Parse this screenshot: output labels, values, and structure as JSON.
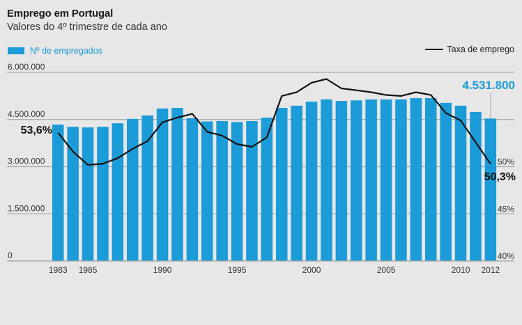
{
  "chart_data": {
    "type": "bar",
    "title": "Emprego em Portugal",
    "subtitle": "Valores do 4º trimestre de cada ano",
    "xlabel": "",
    "ylabel": "",
    "grid": true,
    "categories": [
      "1983",
      "1984",
      "1985",
      "1986",
      "1987",
      "1988",
      "1989",
      "1990",
      "1991",
      "1992",
      "1993",
      "1994",
      "1995",
      "1996",
      "1997",
      "1998",
      "1999",
      "2000",
      "2001",
      "2002",
      "2003",
      "2004",
      "2005",
      "2006",
      "2007",
      "2008",
      "2009",
      "2010",
      "2011",
      "2012"
    ],
    "x_tick_labels": [
      "1983",
      "1985",
      "1990",
      "1995",
      "2000",
      "2005",
      "2010",
      "2012"
    ],
    "series": [
      {
        "name": "Nº de empregados",
        "type": "bar",
        "axis": "left",
        "color": "#1b9bd7",
        "values": [
          4340000,
          4270000,
          4250000,
          4270000,
          4380000,
          4520000,
          4630000,
          4850000,
          4870000,
          4540000,
          4440000,
          4450000,
          4420000,
          4450000,
          4560000,
          4870000,
          4940000,
          5070000,
          5140000,
          5090000,
          5110000,
          5140000,
          5140000,
          5140000,
          5180000,
          5180000,
          5030000,
          4940000,
          4740000,
          4531800
        ]
      },
      {
        "name": "Taxa de emprego",
        "type": "line",
        "axis": "right",
        "color": "#111111",
        "values": [
          53.6,
          51.6,
          50.2,
          50.3,
          50.9,
          51.9,
          52.7,
          54.7,
          55.2,
          55.6,
          53.7,
          53.3,
          52.4,
          52.1,
          53.1,
          57.5,
          57.9,
          58.9,
          59.3,
          58.3,
          58.1,
          57.9,
          57.6,
          57.5,
          57.9,
          57.6,
          55.7,
          54.9,
          52.6,
          50.3
        ]
      }
    ],
    "left_axis": {
      "ylim": [
        0,
        6000000
      ],
      "ticks": [
        0,
        1500000,
        3000000,
        4500000,
        6000000
      ],
      "tick_labels": [
        "0",
        "1.500.000",
        "3.000.000",
        "4.500.000",
        "6.000.000"
      ]
    },
    "right_axis": {
      "ylim": [
        40,
        60
      ],
      "ticks": [
        40,
        45,
        50
      ],
      "tick_labels": [
        "40%",
        "45%",
        "50%"
      ]
    },
    "legend": [
      {
        "label": "Nº de empregados",
        "placement": "top-left"
      },
      {
        "label": "Taxa de emprego",
        "placement": "top-right"
      }
    ],
    "annotations": {
      "start_rate": "53,6%",
      "end_rate": "50,3%",
      "end_value": "4.531.800"
    }
  }
}
